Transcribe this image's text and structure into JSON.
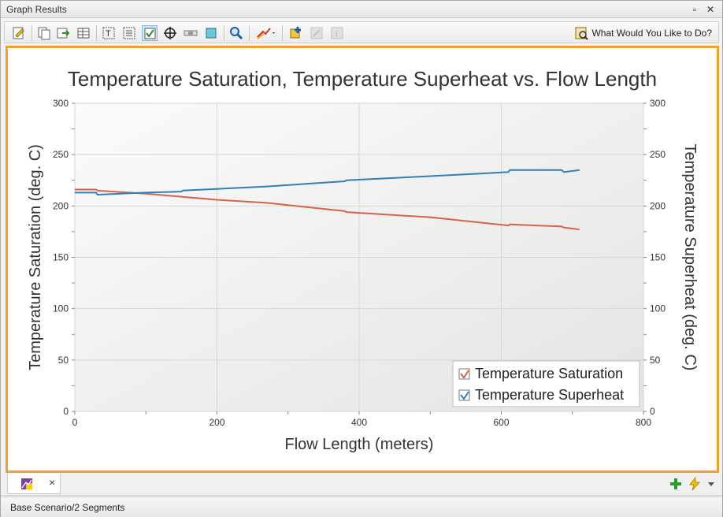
{
  "window": {
    "title": "Graph Results"
  },
  "toolbar": {
    "help_label": "What Would You Like to Do?",
    "tools": [
      "edit-icon",
      "copy-icon",
      "export-icon",
      "table-icon",
      "text-icon",
      "legend-icon",
      "checkbox-icon",
      "crosshair-icon",
      "scrollbar-icon",
      "square-icon",
      "zoom-icon",
      "style-icon",
      "add-graph-icon",
      "edit-disabled-icon",
      "info-disabled-icon"
    ]
  },
  "tab": {
    "close_label": "×"
  },
  "status": {
    "text": "Base Scenario/2 Segments"
  },
  "colors": {
    "accent": "#f0a030",
    "saturation": "#d8614a",
    "superheat": "#2f7fb8"
  },
  "chart_data": {
    "type": "line",
    "title": "Temperature Saturation, Temperature Superheat vs. Flow Length",
    "xlabel": "Flow Length (meters)",
    "ylabel": "Temperature Saturation (deg. C)",
    "y2label": "Temperature Superheat (deg. C)",
    "xlim": [
      0,
      800
    ],
    "ylim": [
      0,
      300
    ],
    "y2lim": [
      0,
      300
    ],
    "xticks": [
      "0",
      "200",
      "400",
      "600",
      "800"
    ],
    "yticks": [
      "0",
      "50",
      "100",
      "150",
      "200",
      "250",
      "300"
    ],
    "grid": true,
    "legend": "bottom-right",
    "series": [
      {
        "name": "Temperature Saturation",
        "axis": "left",
        "x": [
          0,
          30,
          32,
          100,
          150,
          200,
          270,
          380,
          382,
          500,
          610,
          612,
          685,
          688,
          700,
          710
        ],
        "y": [
          216,
          216,
          215,
          212,
          209,
          206,
          203,
          195,
          194,
          189,
          181,
          182,
          180,
          179,
          178,
          177
        ]
      },
      {
        "name": "Temperature Superheat",
        "axis": "right",
        "x": [
          0,
          30,
          32,
          100,
          150,
          152,
          270,
          380,
          382,
          500,
          610,
          612,
          685,
          688,
          710
        ],
        "y": [
          213,
          213,
          211,
          213,
          214,
          215,
          219,
          224,
          225,
          229,
          233,
          235,
          235,
          233,
          235
        ]
      }
    ]
  }
}
